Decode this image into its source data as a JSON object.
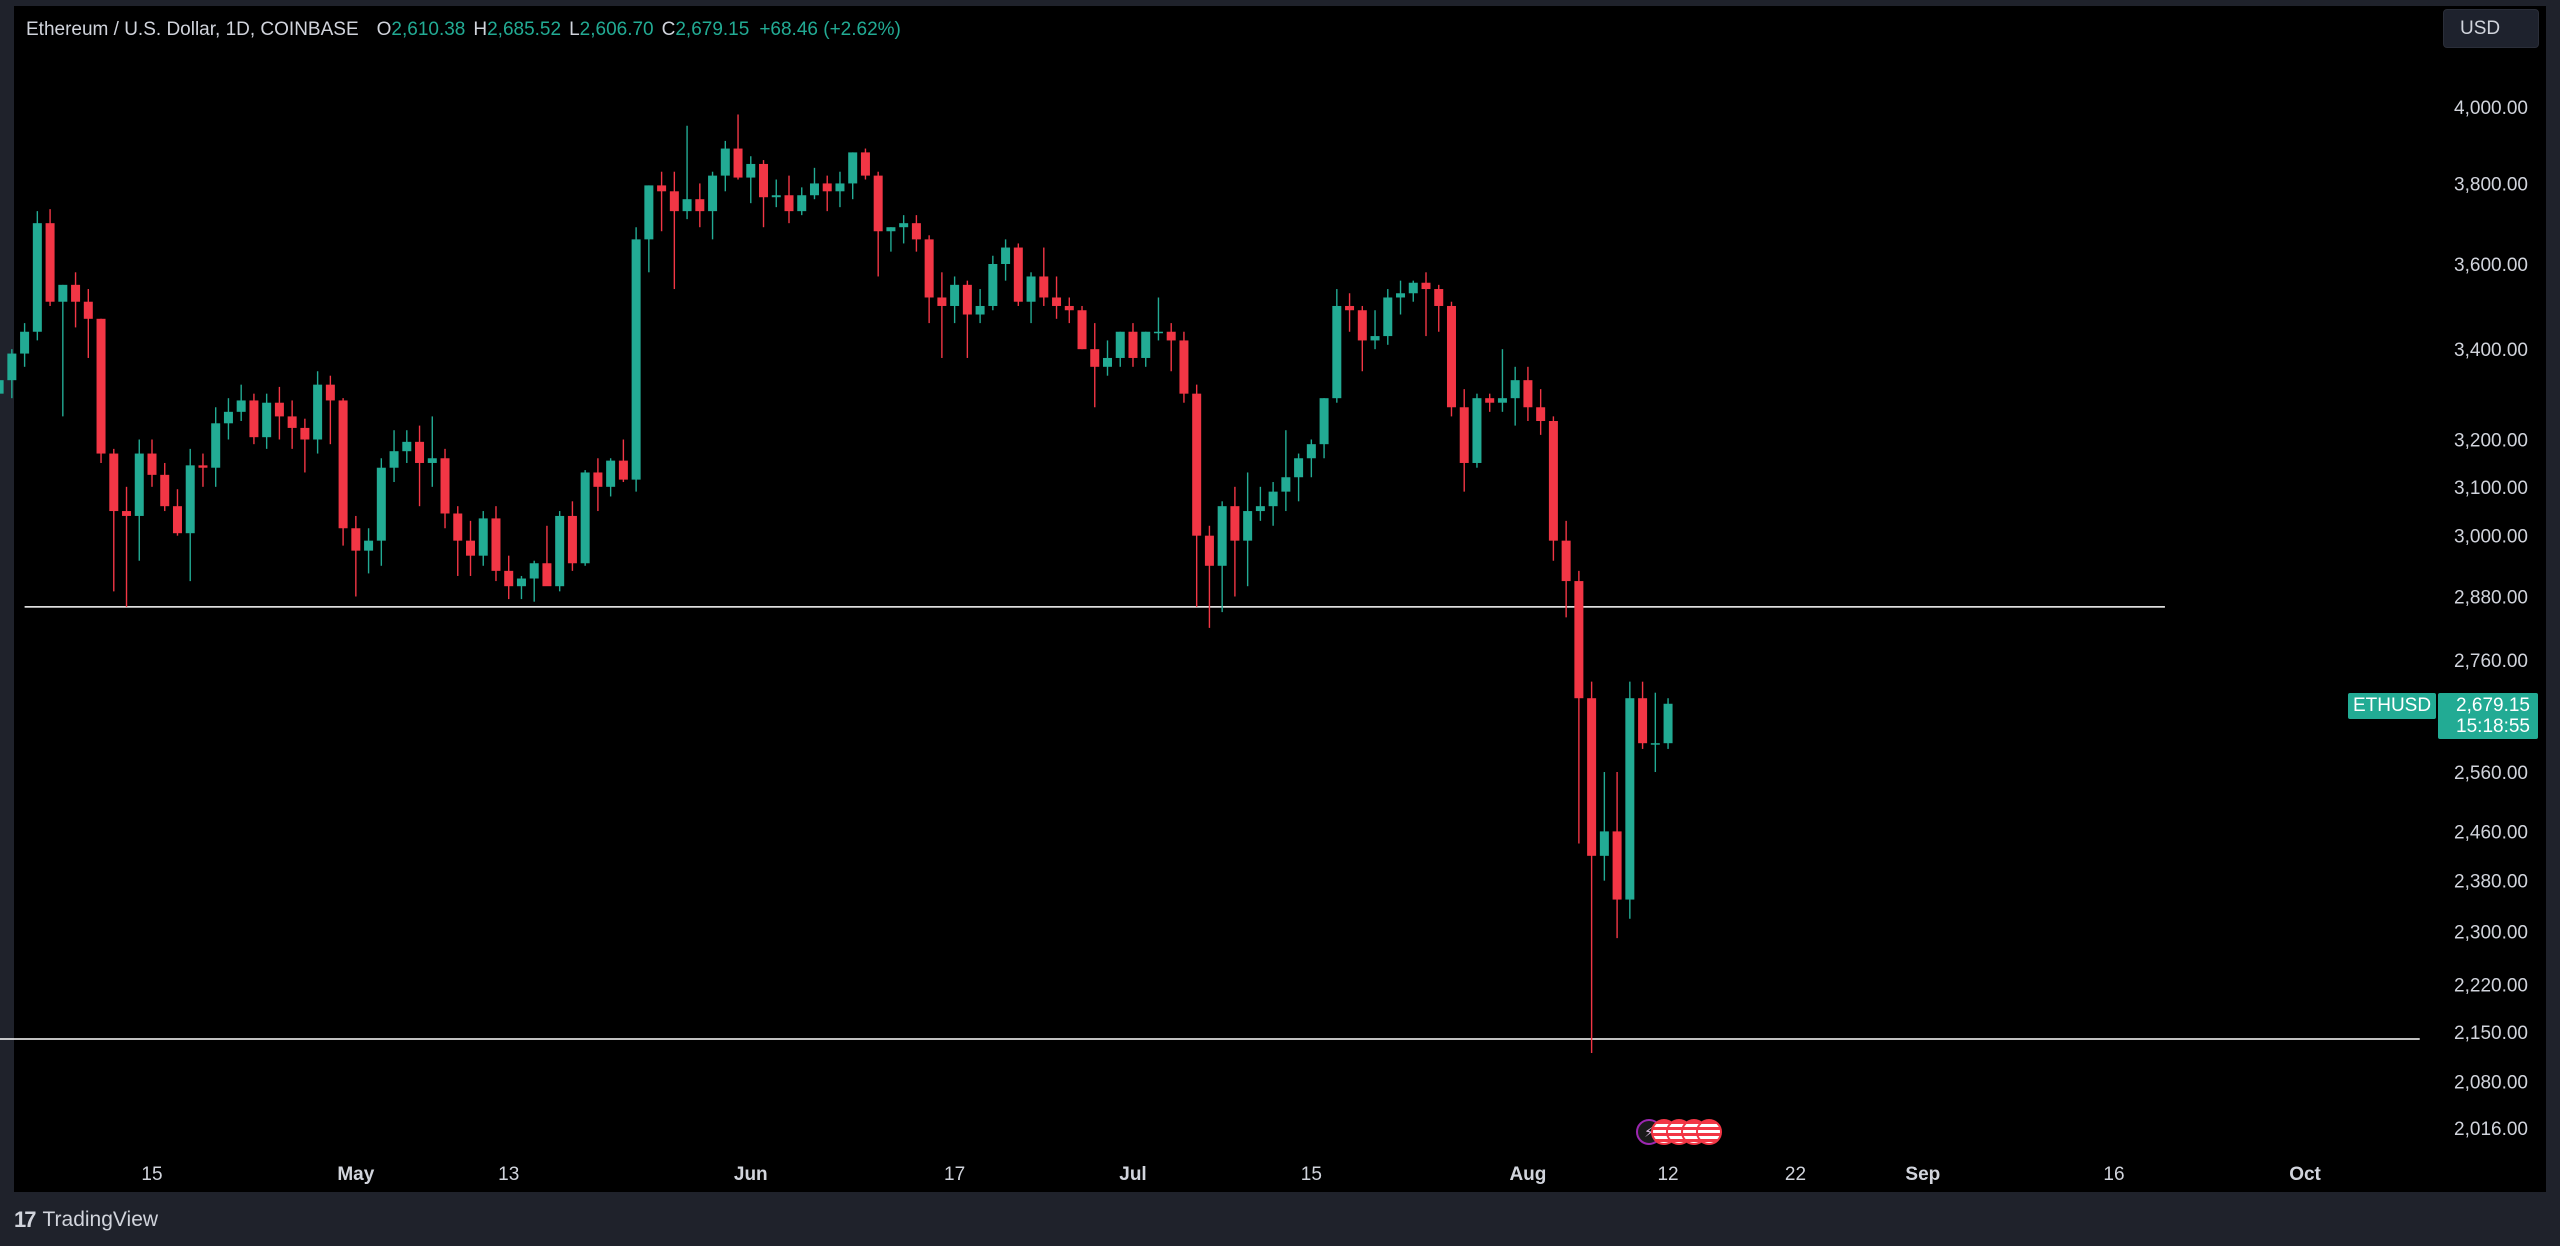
{
  "header": {
    "symbol_line": "Ethereum / U.S. Dollar, 1D, COINBASE",
    "o_label": "O",
    "o_value": "2,610.38",
    "h_label": "H",
    "h_value": "2,685.52",
    "l_label": "L",
    "l_value": "2,606.70",
    "c_label": "C",
    "c_value": "2,679.15",
    "change": "+68.46 (+2.62%)"
  },
  "toolbar": {
    "currency": "USD"
  },
  "price_badge": {
    "symbol": "ETHUSD",
    "price": "2,679.15",
    "countdown": "15:18:55"
  },
  "events": [
    {
      "icon": "lightning-icon",
      "type": "flash"
    },
    {
      "icon": "us-flag-icon",
      "type": "flag"
    },
    {
      "icon": "us-flag-icon",
      "type": "flag"
    },
    {
      "icon": "us-flag-icon",
      "type": "flag"
    },
    {
      "icon": "us-flag-icon",
      "type": "flag"
    }
  ],
  "footer": {
    "logo_glyph": "17",
    "brand": "TradingView"
  },
  "colors": {
    "up": "#22ab94",
    "down": "#f23645",
    "background": "#000000",
    "axis_text": "#d1d4dc",
    "hline": "#ffffff"
  },
  "chart_data": {
    "type": "candlestick",
    "title": "",
    "y_scale": "log",
    "y_ticks": [
      4000,
      3800,
      3600,
      3400,
      3200,
      3100,
      3000,
      2880,
      2760,
      2560,
      2460,
      2380,
      2300,
      2220,
      2150,
      2080,
      2016
    ],
    "y_tick_labels": [
      "4,000.00",
      "3,800.00",
      "3,600.00",
      "3,400.00",
      "3,200.00",
      "3,100.00",
      "3,000.00",
      "2,880.00",
      "2,760.00",
      "2,560.00",
      "2,460.00",
      "2,380.00",
      "2,300.00",
      "2,220.00",
      "2,150.00",
      "2,080.00",
      "2,016.00"
    ],
    "x_ticks": [
      {
        "label": "15",
        "date": "2024-04-15"
      },
      {
        "label": "May",
        "date": "2024-05-01"
      },
      {
        "label": "13",
        "date": "2024-05-13"
      },
      {
        "label": "Jun",
        "date": "2024-06-01"
      },
      {
        "label": "17",
        "date": "2024-06-17"
      },
      {
        "label": "Jul",
        "date": "2024-07-01"
      },
      {
        "label": "15",
        "date": "2024-07-15"
      },
      {
        "label": "Aug",
        "date": "2024-08-01"
      },
      {
        "label": "12",
        "date": "2024-08-12"
      },
      {
        "label": "22",
        "date": "2024-08-22"
      },
      {
        "label": "Sep",
        "date": "2024-09-01"
      },
      {
        "label": "16",
        "date": "2024-09-16"
      },
      {
        "label": "Oct",
        "date": "2024-10-01"
      }
    ],
    "bold_x_labels": [
      "May",
      "Jun",
      "Jul",
      "Aug",
      "Sep",
      "Oct"
    ],
    "current_price": 2679.15,
    "horizontal_lines": [
      {
        "price": 2860,
        "from": "2024-04-05",
        "to": "2024-09-20"
      },
      {
        "price": 2140,
        "from": "2024-04-01",
        "to": "2024-10-10"
      }
    ],
    "candles_ohlc_start_date": "2024-04-01",
    "candles_ohlc": [
      [
        3505,
        3510,
        3440,
        3475
      ],
      [
        3475,
        3490,
        3270,
        3300
      ],
      [
        3300,
        3345,
        3200,
        3330
      ],
      [
        3330,
        3400,
        3290,
        3390
      ],
      [
        3390,
        3460,
        3360,
        3440
      ],
      [
        3440,
        3730,
        3420,
        3700
      ],
      [
        3700,
        3735,
        3500,
        3510
      ],
      [
        3510,
        3550,
        3250,
        3550
      ],
      [
        3550,
        3580,
        3450,
        3510
      ],
      [
        3510,
        3540,
        3380,
        3470
      ],
      [
        3470,
        3470,
        3150,
        3170
      ],
      [
        3170,
        3180,
        2890,
        3050
      ],
      [
        3050,
        3100,
        2860,
        3040
      ],
      [
        3040,
        3200,
        2950,
        3170
      ],
      [
        3170,
        3200,
        3100,
        3125
      ],
      [
        3125,
        3150,
        3050,
        3060
      ],
      [
        3060,
        3095,
        3000,
        3005
      ],
      [
        3005,
        3180,
        2910,
        3145
      ],
      [
        3145,
        3170,
        3100,
        3140
      ],
      [
        3140,
        3270,
        3100,
        3235
      ],
      [
        3235,
        3290,
        3200,
        3260
      ],
      [
        3260,
        3320,
        3240,
        3285
      ],
      [
        3285,
        3300,
        3190,
        3205
      ],
      [
        3205,
        3300,
        3180,
        3280
      ],
      [
        3280,
        3315,
        3200,
        3250
      ],
      [
        3250,
        3285,
        3180,
        3225
      ],
      [
        3225,
        3245,
        3130,
        3200
      ],
      [
        3200,
        3350,
        3170,
        3320
      ],
      [
        3320,
        3340,
        3190,
        3285
      ],
      [
        3285,
        3290,
        2980,
        3015
      ],
      [
        3015,
        3040,
        2880,
        2970
      ],
      [
        2970,
        3015,
        2925,
        2990
      ],
      [
        2990,
        3160,
        2940,
        3140
      ],
      [
        3140,
        3220,
        3110,
        3175
      ],
      [
        3175,
        3220,
        3150,
        3195
      ],
      [
        3195,
        3230,
        3060,
        3150
      ],
      [
        3150,
        3250,
        3100,
        3160
      ],
      [
        3160,
        3180,
        3015,
        3045
      ],
      [
        3045,
        3060,
        2920,
        2990
      ],
      [
        2990,
        3030,
        2920,
        2960
      ],
      [
        2960,
        3050,
        2940,
        3035
      ],
      [
        3035,
        3060,
        2910,
        2930
      ],
      [
        2930,
        2960,
        2875,
        2900
      ],
      [
        2900,
        2920,
        2875,
        2915
      ],
      [
        2915,
        2950,
        2870,
        2945
      ],
      [
        2945,
        3020,
        2910,
        2900
      ],
      [
        2900,
        3050,
        2890,
        3040
      ],
      [
        3040,
        3070,
        2930,
        2945
      ],
      [
        2945,
        3135,
        2940,
        3130
      ],
      [
        3130,
        3160,
        3050,
        3100
      ],
      [
        3100,
        3160,
        3080,
        3155
      ],
      [
        3155,
        3200,
        3110,
        3115
      ],
      [
        3115,
        3690,
        3090,
        3660
      ],
      [
        3660,
        3795,
        3580,
        3795
      ],
      [
        3795,
        3830,
        3680,
        3780
      ],
      [
        3780,
        3830,
        3540,
        3730
      ],
      [
        3730,
        3950,
        3710,
        3760
      ],
      [
        3760,
        3800,
        3690,
        3730
      ],
      [
        3730,
        3830,
        3660,
        3820
      ],
      [
        3820,
        3910,
        3780,
        3890
      ],
      [
        3890,
        3980,
        3810,
        3815
      ],
      [
        3815,
        3870,
        3750,
        3850
      ],
      [
        3850,
        3860,
        3690,
        3765
      ],
      [
        3765,
        3810,
        3740,
        3770
      ],
      [
        3770,
        3820,
        3700,
        3730
      ],
      [
        3730,
        3790,
        3720,
        3770
      ],
      [
        3770,
        3840,
        3760,
        3800
      ],
      [
        3800,
        3820,
        3730,
        3780
      ],
      [
        3780,
        3830,
        3740,
        3800
      ],
      [
        3800,
        3880,
        3760,
        3880
      ],
      [
        3880,
        3890,
        3810,
        3820
      ],
      [
        3820,
        3830,
        3570,
        3680
      ],
      [
        3680,
        3690,
        3630,
        3690
      ],
      [
        3690,
        3720,
        3650,
        3700
      ],
      [
        3700,
        3720,
        3630,
        3660
      ],
      [
        3660,
        3670,
        3460,
        3520
      ],
      [
        3520,
        3580,
        3380,
        3500
      ],
      [
        3500,
        3570,
        3460,
        3550
      ],
      [
        3550,
        3560,
        3380,
        3480
      ],
      [
        3480,
        3540,
        3460,
        3500
      ],
      [
        3500,
        3620,
        3490,
        3600
      ],
      [
        3600,
        3660,
        3560,
        3640
      ],
      [
        3640,
        3650,
        3500,
        3510
      ],
      [
        3510,
        3580,
        3460,
        3570
      ],
      [
        3570,
        3640,
        3500,
        3520
      ],
      [
        3520,
        3570,
        3470,
        3500
      ],
      [
        3500,
        3520,
        3460,
        3490
      ],
      [
        3490,
        3500,
        3400,
        3400
      ],
      [
        3400,
        3460,
        3270,
        3360
      ],
      [
        3360,
        3420,
        3340,
        3380
      ],
      [
        3380,
        3440,
        3360,
        3440
      ],
      [
        3440,
        3460,
        3360,
        3380
      ],
      [
        3380,
        3440,
        3360,
        3440
      ],
      [
        3440,
        3520,
        3420,
        3440
      ],
      [
        3440,
        3460,
        3350,
        3420
      ],
      [
        3420,
        3440,
        3280,
        3300
      ],
      [
        3300,
        3320,
        2860,
        3000
      ],
      [
        3000,
        3020,
        2820,
        2940
      ],
      [
        2940,
        3070,
        2850,
        3060
      ],
      [
        3060,
        3100,
        2880,
        2990
      ],
      [
        2990,
        3130,
        2900,
        3050
      ],
      [
        3050,
        3100,
        3030,
        3060
      ],
      [
        3060,
        3110,
        3020,
        3090
      ],
      [
        3090,
        3220,
        3050,
        3120
      ],
      [
        3120,
        3170,
        3070,
        3160
      ],
      [
        3160,
        3200,
        3120,
        3190
      ],
      [
        3190,
        3290,
        3160,
        3290
      ],
      [
        3290,
        3540,
        3280,
        3500
      ],
      [
        3500,
        3530,
        3440,
        3490
      ],
      [
        3490,
        3500,
        3350,
        3420
      ],
      [
        3420,
        3490,
        3400,
        3430
      ],
      [
        3430,
        3540,
        3410,
        3520
      ],
      [
        3520,
        3560,
        3480,
        3530
      ],
      [
        3530,
        3560,
        3510,
        3555
      ],
      [
        3555,
        3580,
        3430,
        3540
      ],
      [
        3540,
        3550,
        3440,
        3500
      ],
      [
        3500,
        3510,
        3250,
        3270
      ],
      [
        3270,
        3310,
        3090,
        3150
      ],
      [
        3150,
        3300,
        3140,
        3290
      ],
      [
        3290,
        3300,
        3260,
        3280
      ],
      [
        3280,
        3400,
        3260,
        3290
      ],
      [
        3290,
        3360,
        3230,
        3330
      ],
      [
        3330,
        3360,
        3240,
        3270
      ],
      [
        3270,
        3310,
        3210,
        3240
      ],
      [
        3240,
        3250,
        2950,
        2990
      ],
      [
        2990,
        3030,
        2840,
        2910
      ],
      [
        2910,
        2930,
        2440,
        2690
      ],
      [
        2690,
        2720,
        2120,
        2420
      ],
      [
        2420,
        2560,
        2380,
        2460
      ],
      [
        2460,
        2560,
        2290,
        2350
      ],
      [
        2350,
        2720,
        2320,
        2690
      ],
      [
        2690,
        2720,
        2600,
        2610
      ],
      [
        2610,
        2700,
        2560,
        2610
      ],
      [
        2610,
        2690,
        2600,
        2680
      ]
    ]
  }
}
